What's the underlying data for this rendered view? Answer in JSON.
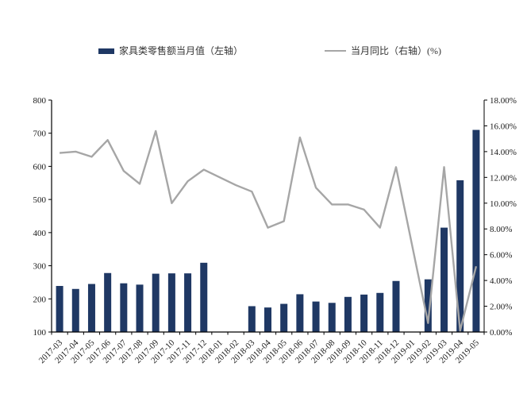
{
  "chart_data": {
    "type": "combo",
    "title": "",
    "categories": [
      "2017-03",
      "2017-04",
      "2017-05",
      "2017-06",
      "2017-07",
      "2017-08",
      "2017-09",
      "2017-10",
      "2017-11",
      "2017-12",
      "2018-01",
      "2018-02",
      "2018-03",
      "2018-04",
      "2018-05",
      "2018-06",
      "2018-07",
      "2018-08",
      "2018-09",
      "2018-10",
      "2018-11",
      "2018-12",
      "2019-01",
      "2019-02",
      "2019-03",
      "2019-04",
      "2019-05"
    ],
    "series": [
      {
        "name": "家具类零售额当月值（左轴）",
        "type": "bar",
        "axis": "left",
        "color": "#1f3864",
        "values": [
          239,
          230,
          245,
          278,
          247,
          243,
          276,
          277,
          277,
          309,
          null,
          null,
          178,
          174,
          185,
          214,
          192,
          188,
          206,
          213,
          218,
          254,
          null,
          259,
          415,
          558,
          710
        ]
      },
      {
        "name": "当月同比（右轴）(%)",
        "type": "line",
        "axis": "right",
        "color": "#a6a6a6",
        "values": [
          13.9,
          14.0,
          13.6,
          14.9,
          12.5,
          11.5,
          15.6,
          10.0,
          11.7,
          12.6,
          12.0,
          11.4,
          10.9,
          8.1,
          8.6,
          15.1,
          11.2,
          9.9,
          9.9,
          9.5,
          8.1,
          12.8,
          null,
          0.7,
          12.8,
          0.1,
          5.1
        ]
      }
    ],
    "left_axis": {
      "min": 100,
      "max": 800,
      "step": 100,
      "ticks": [
        100,
        200,
        300,
        400,
        500,
        600,
        700,
        800
      ]
    },
    "right_axis": {
      "min": 0,
      "max": 18,
      "step": 2,
      "tick_labels": [
        "0.00%",
        "2.00%",
        "4.00%",
        "6.00%",
        "8.00%",
        "10.00%",
        "12.00%",
        "14.00%",
        "16.00%",
        "18.00%"
      ]
    },
    "legend_position": "top",
    "grid": false,
    "axis_color": "#000000",
    "xlabel": "",
    "ylabel_left": "",
    "ylabel_right": ""
  }
}
